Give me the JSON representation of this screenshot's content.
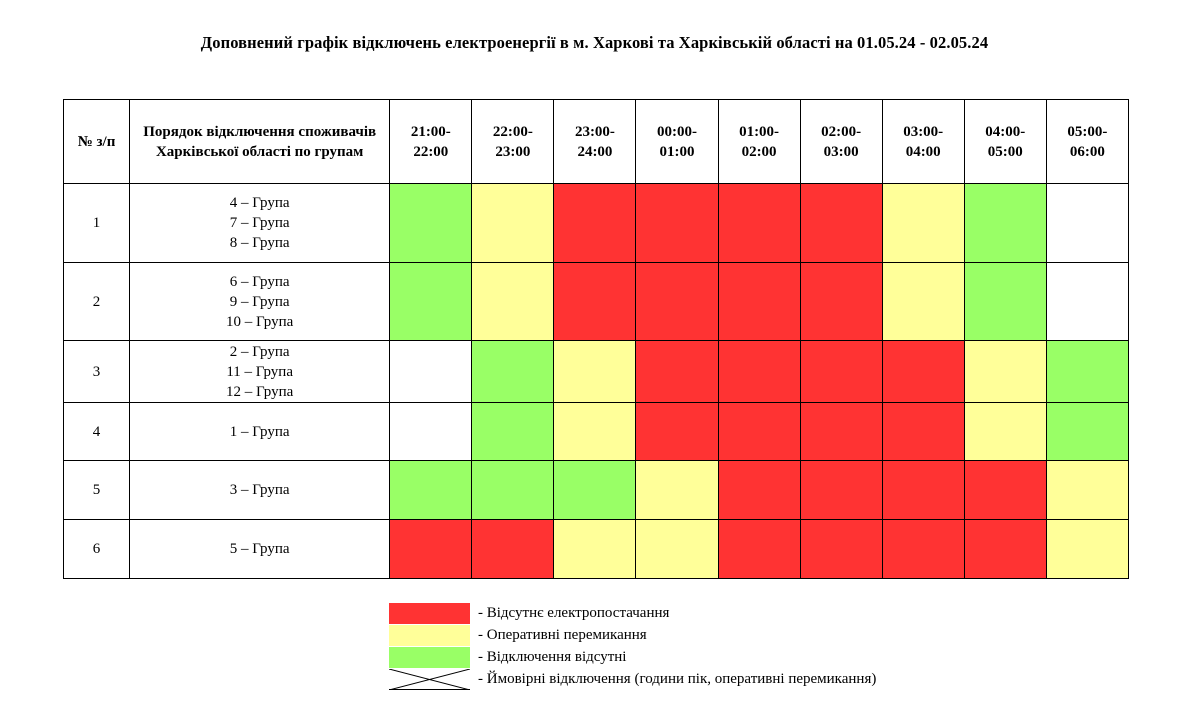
{
  "title": "Доповнений графік відключень електроенергії в м. Харкові та Харківській області на 01.05.24 - 02.05.24",
  "header": {
    "num_label": "№ з/п",
    "groups_label": "Порядок відключення споживачів Харківської області по групам",
    "hours": [
      [
        "21:00-",
        "22:00"
      ],
      [
        "22:00-",
        "23:00"
      ],
      [
        "23:00-",
        "24:00"
      ],
      [
        "00:00-",
        "01:00"
      ],
      [
        "01:00-",
        "02:00"
      ],
      [
        "02:00-",
        "03:00"
      ],
      [
        "03:00-",
        "04:00"
      ],
      [
        "04:00-",
        "05:00"
      ],
      [
        "05:00-",
        "06:00"
      ]
    ]
  },
  "colors": {
    "red": "#ff3333",
    "yellow": "#ffff99",
    "green": "#99ff66",
    "white": "#ffffff"
  },
  "rows": [
    {
      "num": "1",
      "groups": [
        "4 – Група",
        "7 – Група",
        "8 – Група"
      ],
      "cells": [
        "green",
        "yellow",
        "red",
        "red",
        "red",
        "red",
        "yellow",
        "green",
        "white"
      ]
    },
    {
      "num": "2",
      "groups": [
        "6 – Група",
        "9 – Група",
        "10 – Група"
      ],
      "cells": [
        "green",
        "yellow",
        "red",
        "red",
        "red",
        "red",
        "yellow",
        "green",
        "white"
      ]
    },
    {
      "num": "3",
      "groups": [
        "2 – Група",
        "11 – Група",
        "12 – Група"
      ],
      "cells": [
        "white",
        "green",
        "yellow",
        "red",
        "red",
        "red",
        "red",
        "yellow",
        "green"
      ]
    },
    {
      "num": "4",
      "groups": [
        "1 – Група"
      ],
      "cells": [
        "white",
        "green",
        "yellow",
        "red",
        "red",
        "red",
        "red",
        "yellow",
        "green"
      ]
    },
    {
      "num": "5",
      "groups": [
        "3 – Група"
      ],
      "cells": [
        "green",
        "green",
        "green",
        "yellow",
        "red",
        "red",
        "red",
        "red",
        "yellow"
      ]
    },
    {
      "num": "6",
      "groups": [
        "5 – Група"
      ],
      "cells": [
        "red",
        "red",
        "yellow",
        "yellow",
        "red",
        "red",
        "red",
        "red",
        "yellow"
      ]
    }
  ],
  "legend": [
    {
      "kind": "red",
      "label": "- Відсутнє електропостачання"
    },
    {
      "kind": "yellow",
      "label": "- Оперативні перемикання"
    },
    {
      "kind": "green",
      "label": "- Відключення відсутні"
    },
    {
      "kind": "cross",
      "label": "- Ймовірні відключення (години пік, оперативні перемикання)"
    }
  ]
}
